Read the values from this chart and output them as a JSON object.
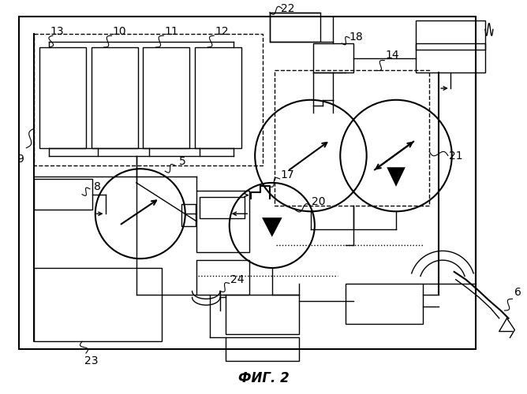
{
  "title": "ФИГ. 2",
  "bg_color": "#ffffff",
  "title_fontsize": 12
}
